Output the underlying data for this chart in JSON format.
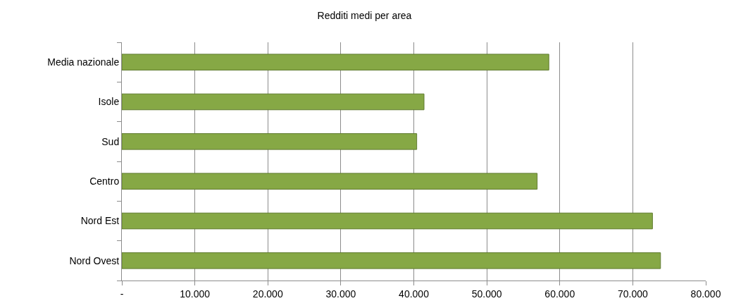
{
  "chart_data": {
    "type": "bar",
    "orientation": "horizontal",
    "title": "Redditi medi per area",
    "categories": [
      "Media nazionale",
      "Isole",
      "Sud",
      "Centro",
      "Nord Est",
      "Nord Ovest"
    ],
    "values": [
      58500,
      41400,
      40400,
      56900,
      72700,
      73800
    ],
    "color": "#86a845",
    "xlim": [
      0,
      80000
    ],
    "xticks": [
      {
        "value": 0,
        "label": "-"
      },
      {
        "value": 10000,
        "label": "10.000"
      },
      {
        "value": 20000,
        "label": "20.000"
      },
      {
        "value": 30000,
        "label": "30.000"
      },
      {
        "value": 40000,
        "label": "40.000"
      },
      {
        "value": 50000,
        "label": "50.000"
      },
      {
        "value": 60000,
        "label": "60.000"
      },
      {
        "value": 70000,
        "label": "70.000"
      },
      {
        "value": 80000,
        "label": "80.000"
      }
    ],
    "grid": "x"
  }
}
